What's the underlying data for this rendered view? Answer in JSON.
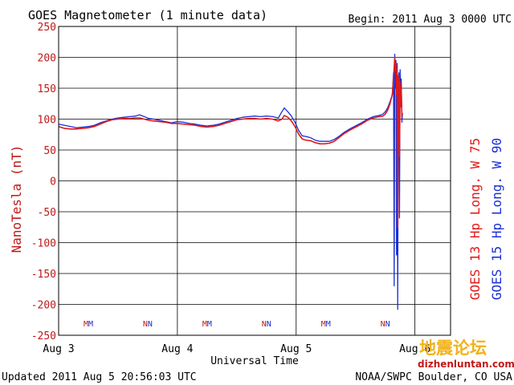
{
  "chart_data": {
    "type": "line",
    "title": "GOES Magnetometer (1 minute data)",
    "begin_text": "Begin:  2011 Aug 3 0000 UTC",
    "ylabel": "NanoTesla (nT)",
    "xlabel": "Universal Time",
    "ylim": [
      -250,
      250
    ],
    "xlim": [
      0,
      3.3
    ],
    "grid": true,
    "y_ticks": [
      "250",
      "200",
      "150",
      "100",
      "50",
      "0",
      "-50",
      "-100",
      "-150",
      "-200",
      "-250"
    ],
    "x_ticks": [
      {
        "x": 0,
        "label": "Aug 3"
      },
      {
        "x": 1,
        "label": "Aug 4"
      },
      {
        "x": 2,
        "label": "Aug 5"
      },
      {
        "x": 3,
        "label": "Aug 6"
      }
    ],
    "markers": [
      {
        "x": 0.25,
        "label": "MM"
      },
      {
        "x": 0.75,
        "label": "NN"
      },
      {
        "x": 1.25,
        "label": "MM"
      },
      {
        "x": 1.75,
        "label": "NN"
      },
      {
        "x": 2.25,
        "label": "MM"
      },
      {
        "x": 2.75,
        "label": "NN"
      }
    ],
    "series": [
      {
        "name": "GOES 15 Hp  Long. W 90",
        "color": "#1a2fd6",
        "points": [
          [
            0.0,
            92
          ],
          [
            0.05,
            90
          ],
          [
            0.1,
            88
          ],
          [
            0.15,
            86
          ],
          [
            0.2,
            87
          ],
          [
            0.25,
            88
          ],
          [
            0.3,
            90
          ],
          [
            0.35,
            94
          ],
          [
            0.4,
            97
          ],
          [
            0.45,
            100
          ],
          [
            0.5,
            102
          ],
          [
            0.55,
            103
          ],
          [
            0.6,
            104
          ],
          [
            0.65,
            105
          ],
          [
            0.68,
            107
          ],
          [
            0.72,
            104
          ],
          [
            0.76,
            101
          ],
          [
            0.8,
            100
          ],
          [
            0.85,
            98
          ],
          [
            0.9,
            96
          ],
          [
            0.95,
            94
          ],
          [
            1.0,
            96
          ],
          [
            1.05,
            95
          ],
          [
            1.1,
            93
          ],
          [
            1.15,
            92
          ],
          [
            1.2,
            90
          ],
          [
            1.25,
            89
          ],
          [
            1.3,
            90
          ],
          [
            1.35,
            92
          ],
          [
            1.4,
            95
          ],
          [
            1.45,
            98
          ],
          [
            1.5,
            101
          ],
          [
            1.55,
            103
          ],
          [
            1.6,
            104
          ],
          [
            1.65,
            105
          ],
          [
            1.7,
            104
          ],
          [
            1.75,
            105
          ],
          [
            1.8,
            104
          ],
          [
            1.85,
            102
          ],
          [
            1.88,
            112
          ],
          [
            1.9,
            118
          ],
          [
            1.93,
            112
          ],
          [
            1.96,
            105
          ],
          [
            1.99,
            95
          ],
          [
            2.02,
            82
          ],
          [
            2.05,
            73
          ],
          [
            2.08,
            72
          ],
          [
            2.12,
            70
          ],
          [
            2.16,
            66
          ],
          [
            2.2,
            64
          ],
          [
            2.24,
            64
          ],
          [
            2.28,
            64
          ],
          [
            2.32,
            67
          ],
          [
            2.36,
            72
          ],
          [
            2.4,
            78
          ],
          [
            2.45,
            84
          ],
          [
            2.5,
            89
          ],
          [
            2.55,
            94
          ],
          [
            2.6,
            100
          ],
          [
            2.65,
            104
          ],
          [
            2.7,
            106
          ],
          [
            2.73,
            108
          ],
          [
            2.75,
            112
          ],
          [
            2.77,
            118
          ],
          [
            2.79,
            128
          ],
          [
            2.81,
            140
          ],
          [
            2.82,
            175
          ],
          [
            2.825,
            -170
          ],
          [
            2.83,
            205
          ],
          [
            2.835,
            150
          ],
          [
            2.84,
            195
          ],
          [
            2.845,
            -120
          ],
          [
            2.85,
            190
          ],
          [
            2.855,
            -208
          ],
          [
            2.86,
            160
          ],
          [
            2.865,
            175
          ],
          [
            2.87,
            -60
          ],
          [
            2.875,
            180
          ],
          [
            2.88,
            130
          ],
          [
            2.885,
            165
          ],
          [
            2.89,
            95
          ],
          [
            2.895,
            110
          ]
        ]
      },
      {
        "name": "GOES 13 Hp  Long. W 75",
        "color": "#e01818",
        "points": [
          [
            0.0,
            88
          ],
          [
            0.05,
            85
          ],
          [
            0.1,
            84
          ],
          [
            0.15,
            84
          ],
          [
            0.2,
            85
          ],
          [
            0.25,
            86
          ],
          [
            0.3,
            88
          ],
          [
            0.35,
            92
          ],
          [
            0.4,
            96
          ],
          [
            0.45,
            99
          ],
          [
            0.5,
            100
          ],
          [
            0.55,
            101
          ],
          [
            0.6,
            101
          ],
          [
            0.65,
            102
          ],
          [
            0.68,
            102
          ],
          [
            0.72,
            100
          ],
          [
            0.76,
            98
          ],
          [
            0.8,
            97
          ],
          [
            0.85,
            96
          ],
          [
            0.9,
            95
          ],
          [
            0.95,
            93
          ],
          [
            1.0,
            93
          ],
          [
            1.05,
            92
          ],
          [
            1.1,
            91
          ],
          [
            1.15,
            90
          ],
          [
            1.2,
            88
          ],
          [
            1.25,
            87
          ],
          [
            1.3,
            88
          ],
          [
            1.35,
            90
          ],
          [
            1.4,
            93
          ],
          [
            1.45,
            96
          ],
          [
            1.5,
            99
          ],
          [
            1.55,
            100
          ],
          [
            1.6,
            101
          ],
          [
            1.65,
            101
          ],
          [
            1.7,
            100
          ],
          [
            1.75,
            101
          ],
          [
            1.8,
            100
          ],
          [
            1.85,
            97
          ],
          [
            1.88,
            100
          ],
          [
            1.9,
            106
          ],
          [
            1.93,
            103
          ],
          [
            1.96,
            97
          ],
          [
            1.99,
            88
          ],
          [
            2.02,
            76
          ],
          [
            2.05,
            68
          ],
          [
            2.08,
            66
          ],
          [
            2.12,
            65
          ],
          [
            2.16,
            62
          ],
          [
            2.2,
            60
          ],
          [
            2.24,
            60
          ],
          [
            2.28,
            61
          ],
          [
            2.32,
            64
          ],
          [
            2.36,
            70
          ],
          [
            2.4,
            76
          ],
          [
            2.45,
            82
          ],
          [
            2.5,
            87
          ],
          [
            2.55,
            92
          ],
          [
            2.6,
            98
          ],
          [
            2.65,
            102
          ],
          [
            2.7,
            104
          ],
          [
            2.73,
            105
          ],
          [
            2.75,
            108
          ],
          [
            2.77,
            114
          ],
          [
            2.79,
            125
          ],
          [
            2.81,
            140
          ],
          [
            2.82,
            165
          ],
          [
            2.83,
            200
          ],
          [
            2.835,
            178
          ],
          [
            2.84,
            190
          ],
          [
            2.845,
            140
          ],
          [
            2.85,
            180
          ],
          [
            2.855,
            -75
          ],
          [
            2.86,
            170
          ],
          [
            2.865,
            150
          ],
          [
            2.87,
            40
          ],
          [
            2.875,
            160
          ],
          [
            2.88,
            120
          ],
          [
            2.885,
            150
          ],
          [
            2.89,
            105
          ],
          [
            2.895,
            108
          ]
        ]
      }
    ]
  },
  "footer": {
    "updated": "Updated 2011 Aug  5 20:56:03 UTC",
    "source": "NOAA/SWPC Boulder, CO USA"
  },
  "watermark": {
    "chinese_text": "地震论坛",
    "url_text": "dizhenluntan.com"
  },
  "legend": {
    "goes13": "GOES 13 Hp  Long. W 75",
    "goes15": "GOES 15 Hp  Long. W 90"
  }
}
